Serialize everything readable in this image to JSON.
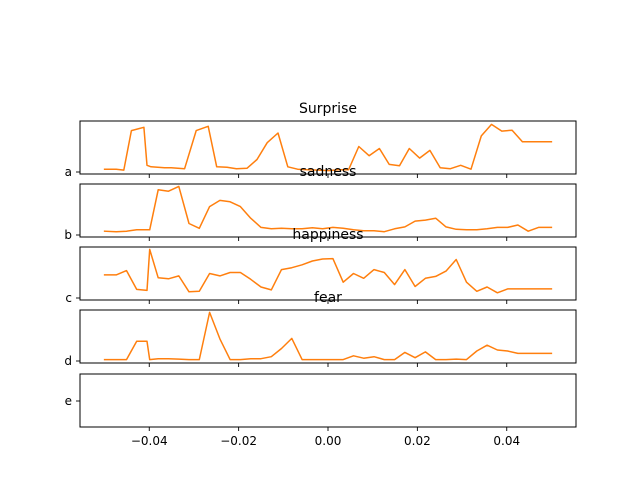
{
  "chart_data": {
    "type": "line",
    "series_color": "#ff7f0e",
    "x_ticks": [
      -0.04,
      -0.02,
      0.0,
      0.02,
      0.04
    ],
    "x_tick_labels": [
      "−0.04",
      "−0.02",
      "0.00",
      "0.02",
      "0.04"
    ],
    "xlim": [
      -0.0555,
      0.0555
    ],
    "panels": [
      {
        "id": "a",
        "title": "Surprise",
        "ytick_label": "a",
        "ylim": [
          -0.05,
          1.05
        ],
        "x": [
          -0.05,
          -0.0474,
          -0.0457,
          -0.044,
          -0.0412,
          -0.0405,
          -0.0396,
          -0.0381,
          -0.0366,
          -0.0351,
          -0.0321,
          -0.0295,
          -0.0268,
          -0.0249,
          -0.0226,
          -0.0205,
          -0.0181,
          -0.0159,
          -0.0136,
          -0.0112,
          -0.009,
          -0.0068,
          -0.0045,
          -0.0022,
          0.0002,
          0.0023,
          0.0046,
          0.0069,
          0.0092,
          0.0115,
          0.0137,
          0.016,
          0.0182,
          0.0205,
          0.0228,
          0.0251,
          0.0274,
          0.0297,
          0.032,
          0.0343,
          0.0366,
          0.0389,
          0.0412,
          0.0435,
          0.0458,
          0.0481,
          0.05
        ],
        "y": [
          0.05,
          0.05,
          0.03,
          0.85,
          0.92,
          0.13,
          0.1,
          0.09,
          0.08,
          0.08,
          0.06,
          0.85,
          0.94,
          0.1,
          0.09,
          0.06,
          0.07,
          0.25,
          0.6,
          0.8,
          0.1,
          0.05,
          0.04,
          0.03,
          0.02,
          0.04,
          0.04,
          0.52,
          0.33,
          0.48,
          0.15,
          0.12,
          0.48,
          0.28,
          0.44,
          0.08,
          0.06,
          0.13,
          0.05,
          0.74,
          0.98,
          0.84,
          0.86,
          0.62,
          0.62,
          0.62,
          0.62
        ]
      },
      {
        "id": "b",
        "title": "sadness",
        "ytick_label": "b",
        "ylim": [
          -0.05,
          1.05
        ],
        "x": [
          -0.05,
          -0.0474,
          -0.0451,
          -0.0428,
          -0.0405,
          -0.0399,
          -0.038,
          -0.0357,
          -0.0334,
          -0.0311,
          -0.0288,
          -0.0265,
          -0.0242,
          -0.0219,
          -0.0196,
          -0.0173,
          -0.015,
          -0.0127,
          -0.0104,
          -0.0081,
          -0.0058,
          -0.0035,
          -0.0012,
          0.0011,
          0.0034,
          0.0057,
          0.008,
          0.0103,
          0.0126,
          0.0149,
          0.0172,
          0.0195,
          0.0218,
          0.0241,
          0.0264,
          0.0287,
          0.031,
          0.0333,
          0.0356,
          0.0379,
          0.0402,
          0.0425,
          0.0448,
          0.0471,
          0.05
        ],
        "y": [
          0.07,
          0.06,
          0.07,
          0.1,
          0.1,
          0.1,
          0.93,
          0.9,
          1.0,
          0.23,
          0.13,
          0.58,
          0.71,
          0.68,
          0.58,
          0.34,
          0.15,
          0.12,
          0.13,
          0.12,
          0.12,
          0.14,
          0.12,
          0.15,
          0.13,
          0.1,
          0.08,
          0.08,
          0.06,
          0.12,
          0.16,
          0.28,
          0.3,
          0.34,
          0.16,
          0.11,
          0.1,
          0.1,
          0.12,
          0.15,
          0.15,
          0.2,
          0.07,
          0.15,
          0.15
        ]
      },
      {
        "id": "c",
        "title": "happiness",
        "ytick_label": "c",
        "ylim": [
          -0.05,
          1.05
        ],
        "x": [
          -0.05,
          -0.0474,
          -0.0451,
          -0.0428,
          -0.0405,
          -0.0399,
          -0.038,
          -0.0357,
          -0.0334,
          -0.0311,
          -0.0288,
          -0.0265,
          -0.0242,
          -0.0219,
          -0.0196,
          -0.0173,
          -0.015,
          -0.0127,
          -0.0104,
          -0.0081,
          -0.0058,
          -0.0035,
          -0.0012,
          0.0011,
          0.0034,
          0.0057,
          0.008,
          0.0103,
          0.0126,
          0.0149,
          0.0172,
          0.0195,
          0.0218,
          0.0241,
          0.0264,
          0.0287,
          0.031,
          0.0333,
          0.0356,
          0.0379,
          0.0402,
          0.0425,
          0.0448,
          0.0471,
          0.05
        ],
        "y": [
          0.47,
          0.47,
          0.56,
          0.17,
          0.15,
          1.0,
          0.41,
          0.39,
          0.45,
          0.12,
          0.13,
          0.5,
          0.45,
          0.52,
          0.52,
          0.38,
          0.22,
          0.16,
          0.58,
          0.62,
          0.68,
          0.76,
          0.8,
          0.81,
          0.32,
          0.5,
          0.4,
          0.58,
          0.52,
          0.27,
          0.58,
          0.23,
          0.4,
          0.44,
          0.55,
          0.79,
          0.32,
          0.13,
          0.22,
          0.1,
          0.18,
          0.18,
          0.18,
          0.18,
          0.18
        ]
      },
      {
        "id": "d",
        "title": "fear",
        "ytick_label": "d",
        "ylim": [
          -0.05,
          1.05
        ],
        "x": [
          -0.05,
          -0.0474,
          -0.0451,
          -0.0428,
          -0.0405,
          -0.0399,
          -0.038,
          -0.0357,
          -0.0334,
          -0.0311,
          -0.0288,
          -0.0265,
          -0.0242,
          -0.0219,
          -0.0196,
          -0.0173,
          -0.015,
          -0.0127,
          -0.0104,
          -0.0081,
          -0.0058,
          -0.0035,
          -0.0012,
          0.0011,
          0.0034,
          0.0057,
          0.008,
          0.0103,
          0.0126,
          0.0149,
          0.0172,
          0.0195,
          0.0218,
          0.0241,
          0.0264,
          0.0287,
          0.031,
          0.0333,
          0.0356,
          0.0379,
          0.0402,
          0.0425,
          0.0448,
          0.0471,
          0.05
        ],
        "y": [
          0.02,
          0.02,
          0.02,
          0.4,
          0.4,
          0.02,
          0.04,
          0.04,
          0.03,
          0.02,
          0.02,
          1.0,
          0.45,
          0.02,
          0.02,
          0.04,
          0.04,
          0.08,
          0.25,
          0.46,
          0.02,
          0.02,
          0.02,
          0.02,
          0.02,
          0.1,
          0.05,
          0.08,
          0.02,
          0.02,
          0.17,
          0.06,
          0.18,
          0.02,
          0.02,
          0.03,
          0.02,
          0.2,
          0.32,
          0.22,
          0.2,
          0.15,
          0.15,
          0.15,
          0.15
        ]
      },
      {
        "id": "e",
        "title": "",
        "ytick_label": "e",
        "ylim": [
          -0.05,
          1.05
        ],
        "x": [],
        "y": []
      }
    ]
  }
}
